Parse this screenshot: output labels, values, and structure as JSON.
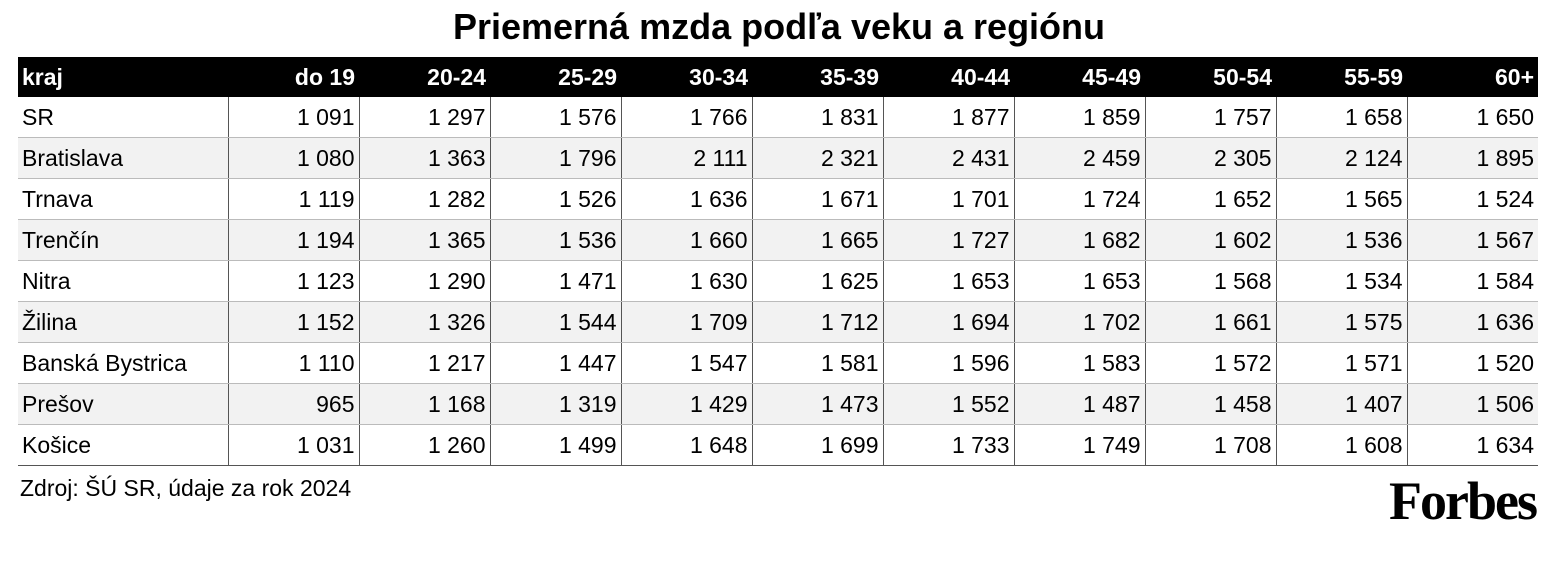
{
  "header": {
    "title": "Priemerná mzda podľa veku a regiónu"
  },
  "table": {
    "columns": [
      "kraj",
      "do 19",
      "20-24",
      "25-29",
      "30-34",
      "35-39",
      "40-44",
      "45-49",
      "50-54",
      "55-59",
      "60+"
    ],
    "rows": [
      [
        "SR",
        "1 091",
        "1 297",
        "1 576",
        "1 766",
        "1 831",
        "1 877",
        "1 859",
        "1 757",
        "1 658",
        "1 650"
      ],
      [
        "Bratislava",
        "1 080",
        "1 363",
        "1 796",
        "2 111",
        "2 321",
        "2 431",
        "2 459",
        "2 305",
        "2 124",
        "1 895"
      ],
      [
        "Trnava",
        "1 119",
        "1 282",
        "1 526",
        "1 636",
        "1 671",
        "1 701",
        "1 724",
        "1 652",
        "1 565",
        "1 524"
      ],
      [
        "Trenčín",
        "1 194",
        "1 365",
        "1 536",
        "1 660",
        "1 665",
        "1 727",
        "1 682",
        "1 602",
        "1 536",
        "1 567"
      ],
      [
        "Nitra",
        "1 123",
        "1 290",
        "1 471",
        "1 630",
        "1 625",
        "1 653",
        "1 653",
        "1 568",
        "1 534",
        "1 584"
      ],
      [
        "Žilina",
        "1 152",
        "1 326",
        "1 544",
        "1 709",
        "1 712",
        "1 694",
        "1 702",
        "1 661",
        "1 575",
        "1 636"
      ],
      [
        "Banská Bystrica",
        "1 110",
        "1 217",
        "1 447",
        "1 547",
        "1 581",
        "1 596",
        "1 583",
        "1 572",
        "1 571",
        "1 520"
      ],
      [
        "Prešov",
        "965",
        "1 168",
        "1 319",
        "1 429",
        "1 473",
        "1 552",
        "1 487",
        "1 458",
        "1 407",
        "1 506"
      ],
      [
        "Košice",
        "1 031",
        "1 260",
        "1 499",
        "1 648",
        "1 699",
        "1 733",
        "1 749",
        "1 708",
        "1 608",
        "1 634"
      ]
    ]
  },
  "footer": {
    "source": "Zdroj: ŠÚ SR, údaje za rok 2024",
    "logo": "Forbes"
  }
}
